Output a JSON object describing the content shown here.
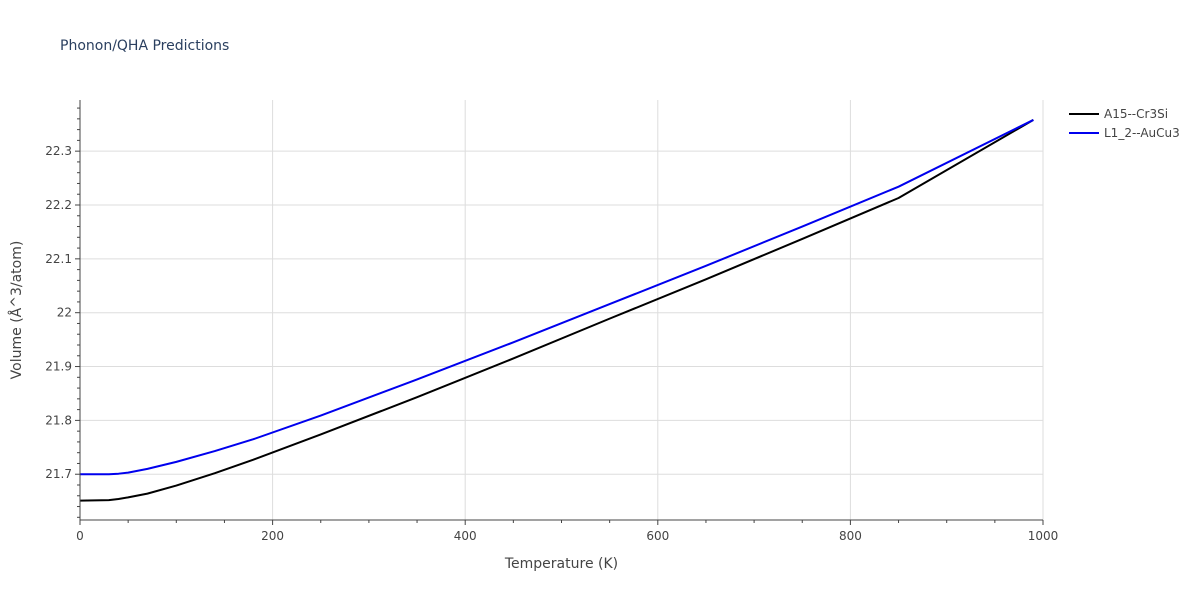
{
  "chart_data": {
    "type": "line",
    "title": "Phonon/QHA Predictions",
    "xlabel": "Temperature (K)",
    "ylabel": "Volume (Å^3/atom)",
    "xlim": [
      0,
      1000
    ],
    "ylim": [
      21.615,
      22.395
    ],
    "x_ticks": [
      0,
      200,
      400,
      600,
      800,
      1000
    ],
    "y_ticks": [
      21.7,
      21.8,
      21.9,
      22.0,
      22.1,
      22.2,
      22.3
    ],
    "y_tick_labels": [
      "21.7",
      "21.8",
      "21.9",
      "22",
      "22.1",
      "22.2",
      "22.3"
    ],
    "grid": true,
    "legend_position": "top-right",
    "series": [
      {
        "name": "A15--Cr3Si",
        "color": "#000000",
        "x": [
          0,
          30,
          40,
          50,
          70,
          100,
          140,
          180,
          250,
          350,
          450,
          550,
          650,
          750,
          850,
          990
        ],
        "y": [
          21.651,
          21.652,
          21.654,
          21.657,
          21.664,
          21.679,
          21.702,
          21.727,
          21.774,
          21.843,
          21.915,
          21.989,
          22.062,
          22.137,
          22.213,
          22.358
        ]
      },
      {
        "name": "L1_2--AuCu3",
        "color": "#0000ee",
        "x": [
          0,
          30,
          40,
          50,
          70,
          100,
          140,
          180,
          250,
          350,
          450,
          550,
          650,
          750,
          850,
          990
        ],
        "y": [
          21.7,
          21.7,
          21.701,
          21.703,
          21.71,
          21.723,
          21.743,
          21.765,
          21.809,
          21.876,
          21.945,
          22.016,
          22.087,
          22.16,
          22.234,
          22.358
        ]
      }
    ]
  }
}
